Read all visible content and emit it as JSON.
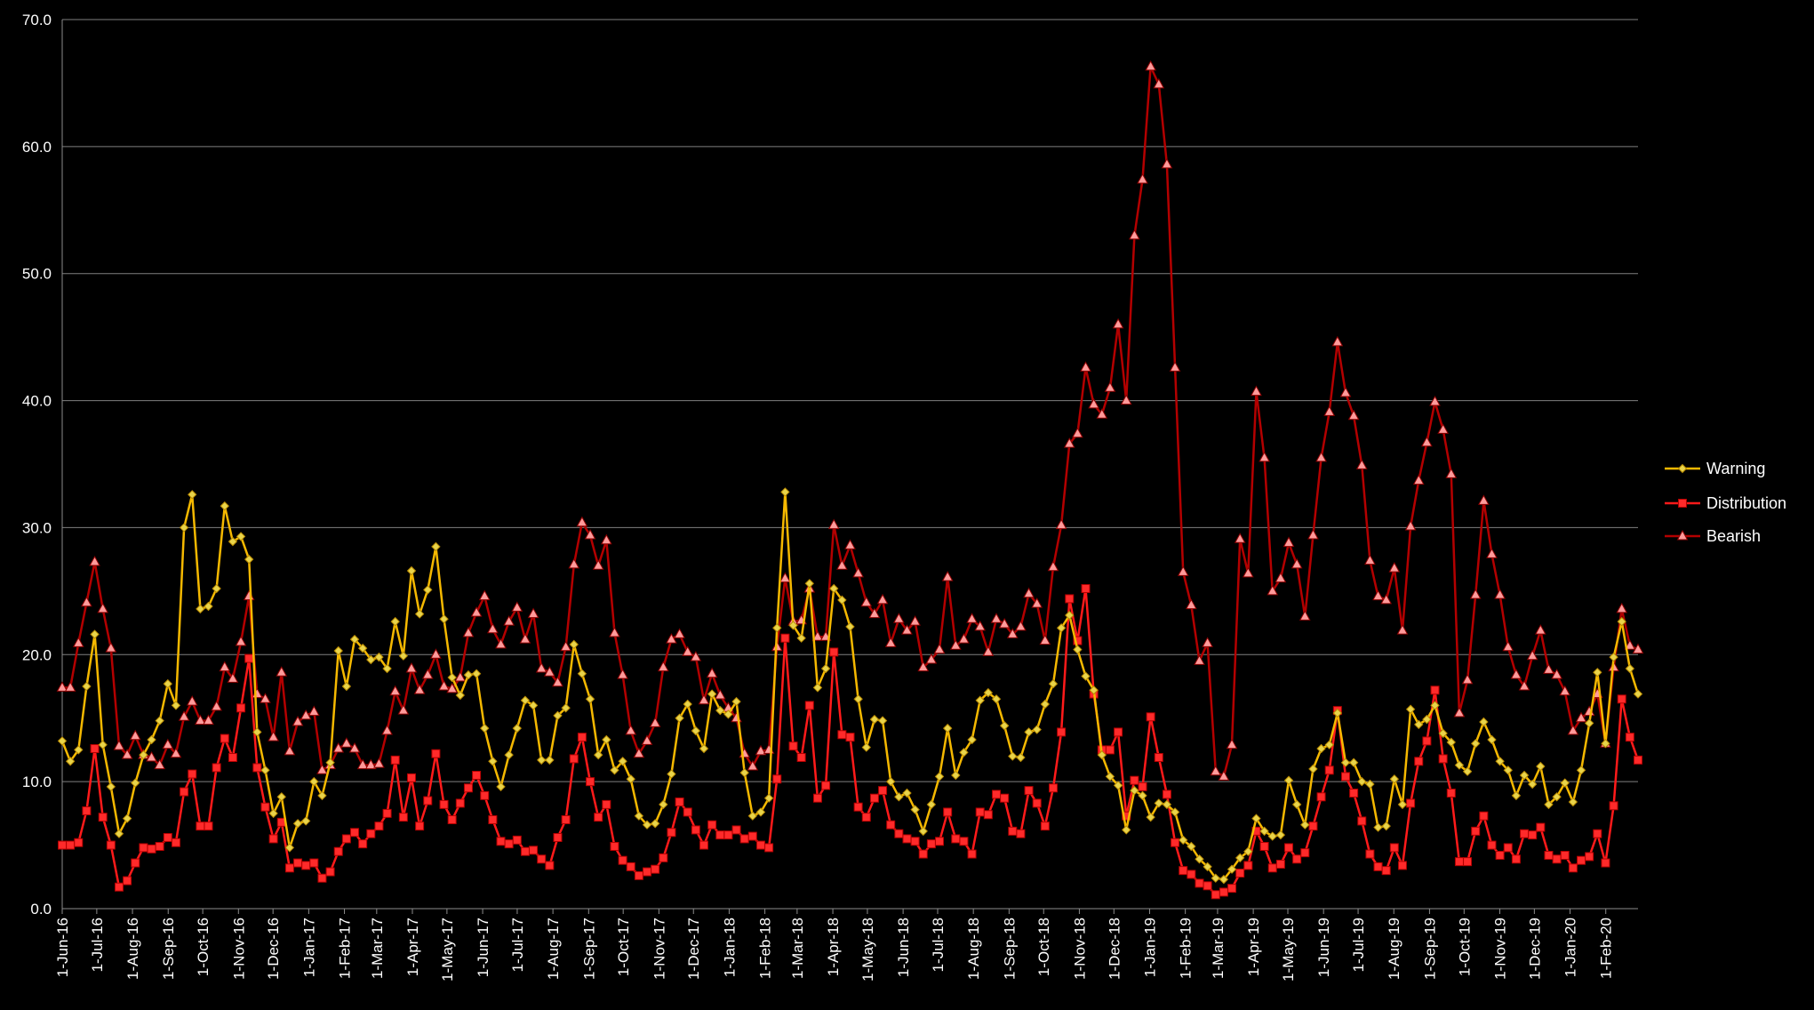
{
  "chart_data": {
    "type": "line",
    "title": "",
    "xlabel": "",
    "ylabel": "",
    "ylim": [
      0,
      70
    ],
    "yticks": [
      "0.0",
      "10.0",
      "20.0",
      "30.0",
      "40.0",
      "50.0",
      "60.0",
      "70.0"
    ],
    "grid": true,
    "legend_position": "right",
    "x_start": "2016-06-01",
    "x_end": "2020-02-29",
    "xtick_labels": [
      "1-Jun-16",
      "1-Jul-16",
      "1-Aug-16",
      "1-Sep-16",
      "1-Oct-16",
      "1-Nov-16",
      "1-Dec-16",
      "1-Jan-17",
      "1-Feb-17",
      "1-Mar-17",
      "1-Apr-17",
      "1-May-17",
      "1-Jun-17",
      "1-Jul-17",
      "1-Aug-17",
      "1-Sep-17",
      "1-Oct-17",
      "1-Nov-17",
      "1-Dec-17",
      "1-Jan-18",
      "1-Feb-18",
      "1-Mar-18",
      "1-Apr-18",
      "1-May-18",
      "1-Jun-18",
      "1-Jul-18",
      "1-Aug-18",
      "1-Sep-18",
      "1-Oct-18",
      "1-Nov-18",
      "1-Dec-18",
      "1-Jan-19",
      "1-Feb-19",
      "1-Mar-19",
      "1-Apr-19",
      "1-May-19",
      "1-Jun-19",
      "1-Jul-19",
      "1-Aug-19",
      "1-Sep-19",
      "1-Oct-19",
      "1-Nov-19",
      "1-Dec-19",
      "1-Jan-20",
      "1-Feb-20"
    ],
    "xtick_dates": [
      "2016-06-01",
      "2016-07-01",
      "2016-08-01",
      "2016-09-01",
      "2016-10-01",
      "2016-11-01",
      "2016-12-01",
      "2017-01-01",
      "2017-02-01",
      "2017-03-01",
      "2017-04-01",
      "2017-05-01",
      "2017-06-01",
      "2017-07-01",
      "2017-08-01",
      "2017-09-01",
      "2017-10-01",
      "2017-11-01",
      "2017-12-01",
      "2018-01-01",
      "2018-02-01",
      "2018-03-01",
      "2018-04-01",
      "2018-05-01",
      "2018-06-01",
      "2018-07-01",
      "2018-08-01",
      "2018-09-01",
      "2018-10-01",
      "2018-11-01",
      "2018-12-01",
      "2019-01-01",
      "2019-02-01",
      "2019-03-01",
      "2019-04-01",
      "2019-05-01",
      "2019-06-01",
      "2019-07-01",
      "2019-08-01",
      "2019-09-01",
      "2019-10-01",
      "2019-11-01",
      "2019-12-01",
      "2020-01-01",
      "2020-02-01"
    ],
    "series": [
      {
        "name": "Warning",
        "color": "#f5b800",
        "marker": "diamond",
        "values": [
          13.2,
          11.6,
          12.5,
          17.5,
          21.6,
          12.9,
          9.6,
          5.9,
          7.1,
          9.9,
          12.1,
          13.3,
          14.8,
          17.7,
          16.0,
          30.0,
          32.6,
          23.6,
          23.8,
          25.2,
          31.7,
          28.9,
          29.3,
          27.5,
          13.9,
          10.9,
          7.5,
          8.8,
          4.8,
          6.7,
          6.9,
          10.0,
          8.9,
          11.5,
          20.3,
          17.5,
          21.2,
          20.5,
          19.6,
          19.8,
          18.9,
          22.6,
          19.9,
          26.6,
          23.2,
          25.1,
          28.5,
          22.8,
          18.2,
          16.8,
          18.4,
          18.5,
          14.2,
          11.6,
          9.6,
          12.1,
          14.2,
          16.4,
          16.0,
          11.7,
          11.7,
          15.2,
          15.8,
          20.8,
          18.5,
          16.5,
          12.1,
          13.3,
          10.9,
          11.6,
          10.2,
          7.3,
          6.6,
          6.7,
          8.2,
          10.6,
          15.0,
          16.1,
          14.0,
          12.6,
          16.9,
          15.6,
          15.3,
          16.3,
          10.7,
          7.3,
          7.6,
          8.7,
          22.1,
          32.8,
          22.3,
          21.3,
          25.6,
          17.4,
          18.9,
          25.2,
          24.3,
          22.2,
          16.5,
          12.7,
          14.9,
          14.8,
          10.0,
          8.8,
          9.1,
          7.8,
          6.1,
          8.2,
          10.4,
          14.2,
          10.5,
          12.3,
          13.3,
          16.4,
          17.0,
          16.5,
          14.4,
          12.0,
          11.9,
          13.9,
          14.1,
          16.1,
          17.7,
          22.1,
          23.1,
          20.4,
          18.3,
          17.2,
          12.1,
          10.4,
          9.7,
          6.2,
          9.3,
          8.9,
          7.2,
          8.3,
          8.2,
          7.6,
          5.4,
          4.9,
          3.9,
          3.3,
          2.4,
          2.3,
          3.1,
          4.0,
          4.5,
          7.1,
          6.1,
          5.7,
          5.8,
          10.1,
          8.2,
          6.6,
          11.0,
          12.6,
          12.9,
          15.4,
          11.5,
          11.5,
          10.0,
          9.8,
          6.4,
          6.5,
          10.2,
          8.2,
          15.7,
          14.5,
          14.9,
          16.0,
          13.8,
          13.1,
          11.3,
          10.8,
          13.0,
          14.7,
          13.3,
          11.6,
          10.9,
          8.9,
          10.5,
          9.8,
          11.2,
          8.2,
          8.8,
          9.9,
          8.4,
          10.9,
          14.6,
          18.6,
          13.0,
          19.8,
          22.6,
          18.9,
          16.9
        ]
      },
      {
        "name": "Distribution",
        "color": "#ff1a1a",
        "marker": "square",
        "values": [
          5.0,
          5.0,
          5.2,
          7.7,
          12.6,
          7.2,
          5.0,
          1.7,
          2.2,
          3.6,
          4.8,
          4.7,
          4.9,
          5.6,
          5.2,
          9.2,
          10.6,
          6.5,
          6.5,
          11.1,
          13.4,
          11.9,
          15.8,
          19.7,
          11.1,
          8.0,
          5.5,
          6.8,
          3.2,
          3.6,
          3.4,
          3.6,
          2.4,
          2.9,
          4.5,
          5.5,
          6.0,
          5.1,
          5.9,
          6.5,
          7.5,
          11.7,
          7.2,
          10.3,
          6.5,
          8.5,
          12.2,
          8.2,
          7.0,
          8.3,
          9.5,
          10.5,
          8.9,
          7.0,
          5.3,
          5.1,
          5.4,
          4.5,
          4.6,
          3.9,
          3.4,
          5.6,
          7.0,
          11.8,
          13.5,
          10.0,
          7.2,
          8.2,
          4.9,
          3.8,
          3.3,
          2.6,
          2.9,
          3.1,
          4.0,
          6.0,
          8.4,
          7.6,
          6.2,
          5.0,
          6.6,
          5.8,
          5.8,
          6.2,
          5.5,
          5.7,
          5.0,
          4.8,
          10.2,
          21.3,
          12.8,
          11.9,
          16.0,
          8.7,
          9.7,
          20.2,
          13.7,
          13.5,
          8.0,
          7.2,
          8.7,
          9.3,
          6.6,
          5.9,
          5.5,
          5.3,
          4.3,
          5.1,
          5.3,
          7.6,
          5.5,
          5.3,
          4.3,
          7.6,
          7.4,
          9.0,
          8.7,
          6.1,
          5.9,
          9.3,
          8.3,
          6.5,
          9.5,
          13.9,
          24.4,
          21.1,
          25.2,
          16.9,
          12.5,
          12.5,
          13.9,
          7.3,
          10.1,
          9.6,
          15.1,
          11.9,
          9.0,
          5.2,
          3.0,
          2.7,
          2.0,
          1.8,
          1.1,
          1.3,
          1.6,
          2.8,
          3.4,
          6.1,
          4.9,
          3.2,
          3.5,
          4.8,
          3.9,
          4.4,
          6.5,
          8.8,
          10.9,
          15.6,
          10.4,
          9.1,
          6.9,
          4.3,
          3.3,
          3.0,
          4.8,
          3.4,
          8.3,
          11.6,
          13.2,
          17.2,
          11.8,
          9.1,
          3.7,
          3.7,
          6.1,
          7.3,
          5.0,
          4.2,
          4.8,
          3.9,
          5.9,
          5.8,
          6.4,
          4.2,
          3.9,
          4.2,
          3.2,
          3.8,
          4.1,
          5.9,
          3.6,
          8.1,
          16.5,
          13.5,
          11.7
        ]
      },
      {
        "name": "Bearish",
        "color": "#b30000",
        "marker": "triangle",
        "values": [
          17.4,
          17.4,
          20.9,
          24.1,
          27.3,
          23.6,
          20.5,
          12.8,
          12.1,
          13.6,
          12.1,
          11.9,
          11.3,
          12.9,
          12.2,
          15.1,
          16.3,
          14.8,
          14.8,
          15.9,
          19.0,
          18.1,
          21.0,
          24.6,
          16.9,
          16.5,
          13.5,
          18.6,
          12.4,
          14.7,
          15.2,
          15.5,
          10.9,
          11.3,
          12.6,
          13.0,
          12.6,
          11.3,
          11.3,
          11.4,
          14.0,
          17.1,
          15.6,
          18.9,
          17.2,
          18.4,
          20.0,
          17.5,
          17.3,
          18.2,
          21.7,
          23.3,
          24.6,
          22.0,
          20.8,
          22.6,
          23.7,
          21.2,
          23.2,
          18.9,
          18.6,
          17.8,
          20.6,
          27.1,
          30.4,
          29.4,
          27.0,
          29.0,
          21.7,
          18.4,
          14.0,
          12.2,
          13.2,
          14.6,
          19.0,
          21.2,
          21.6,
          20.2,
          19.8,
          16.4,
          18.5,
          16.8,
          15.8,
          15.0,
          12.2,
          11.2,
          12.4,
          12.5,
          20.6,
          26.0,
          22.6,
          22.7,
          25.2,
          21.4,
          21.4,
          30.2,
          27.0,
          28.6,
          26.4,
          24.1,
          23.2,
          24.3,
          20.9,
          22.8,
          21.9,
          22.6,
          19.0,
          19.6,
          20.4,
          26.1,
          20.7,
          21.2,
          22.8,
          22.2,
          20.2,
          22.8,
          22.4,
          21.6,
          22.2,
          24.8,
          24.0,
          21.1,
          26.9,
          30.2,
          36.6,
          37.4,
          42.6,
          39.7,
          38.9,
          41.0,
          46.0,
          40.0,
          53.0,
          57.4,
          66.3,
          64.9,
          58.6,
          42.6,
          26.5,
          23.9,
          19.5,
          20.9,
          10.8,
          10.4,
          12.9,
          29.1,
          26.4,
          40.7,
          35.5,
          25.0,
          26.0,
          28.8,
          27.1,
          23.0,
          29.4,
          35.5,
          39.1,
          44.6,
          40.6,
          38.8,
          34.9,
          27.4,
          24.6,
          24.3,
          26.8,
          21.9,
          30.1,
          33.7,
          36.7,
          39.9,
          37.7,
          34.2,
          15.4,
          18.0,
          24.7,
          32.1,
          27.9,
          24.7,
          20.6,
          18.4,
          17.5,
          19.9,
          21.9,
          18.8,
          18.4,
          17.1,
          14.0,
          15.0,
          15.5,
          16.9,
          13.0,
          19.0,
          23.6,
          20.7,
          20.4
        ]
      }
    ]
  }
}
